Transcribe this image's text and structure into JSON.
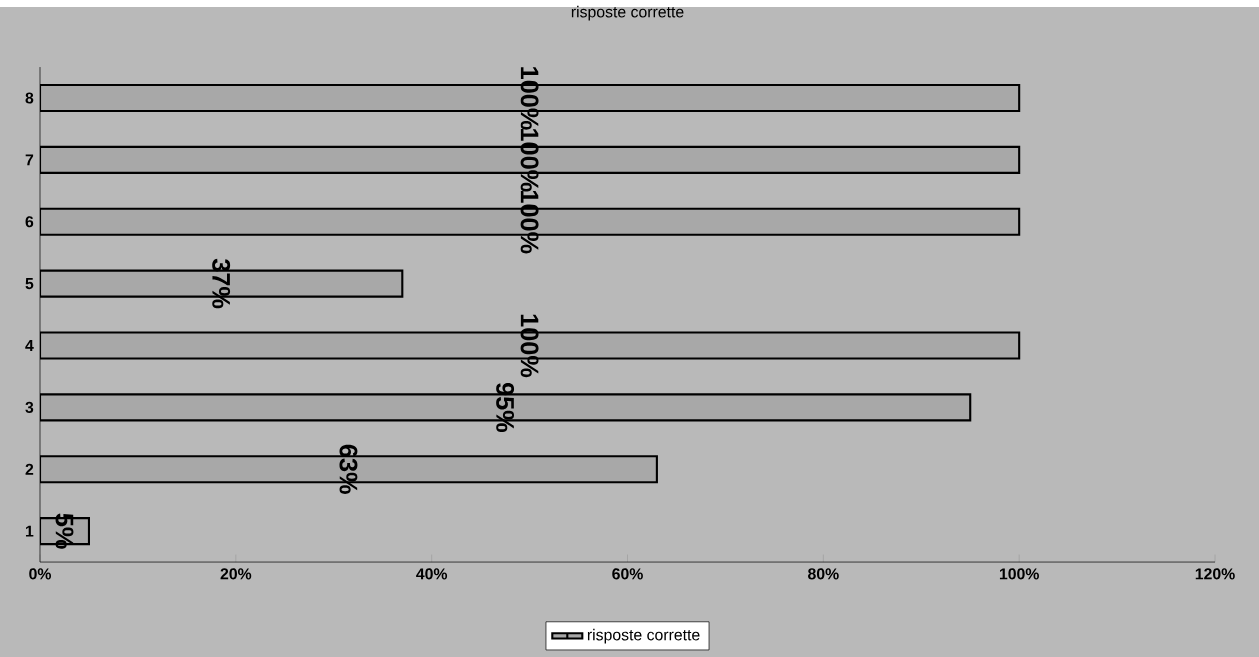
{
  "chart_data": {
    "type": "bar",
    "orientation": "horizontal",
    "title": "risposte corrette",
    "categories": [
      "8",
      "7",
      "6",
      "5",
      "4",
      "3",
      "2",
      "1"
    ],
    "series": [
      {
        "name": "risposte corrette",
        "color": "#a8a8a8",
        "values": [
          100,
          100,
          100,
          37,
          100,
          95,
          63,
          5
        ],
        "value_labels": [
          "100%",
          "100%",
          "100%",
          "37%",
          "100%",
          "95%",
          "63%",
          "5%"
        ]
      }
    ],
    "xlim": [
      0,
      120
    ],
    "xticks": [
      {
        "value": 0,
        "label": "0%"
      },
      {
        "value": 20,
        "label": "20%"
      },
      {
        "value": 40,
        "label": "40%"
      },
      {
        "value": 60,
        "label": "60%"
      },
      {
        "value": 80,
        "label": "80%"
      },
      {
        "value": 100,
        "label": "100%"
      },
      {
        "value": 120,
        "label": "120%"
      }
    ],
    "legend": "bottom"
  }
}
